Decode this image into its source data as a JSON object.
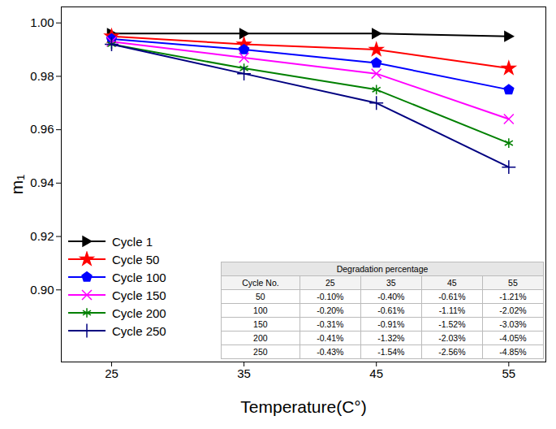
{
  "chart_data": {
    "type": "line",
    "x_label": "Temperature(C°)",
    "y_label": "m₁",
    "x": [
      25,
      35,
      45,
      55
    ],
    "xlim": [
      21.2,
      57.8
    ],
    "xticks": [
      25,
      35,
      45,
      55
    ],
    "ylim": [
      0.873,
      1.006
    ],
    "yticks": [
      {
        "value": 0.9,
        "label": "0.90"
      },
      0.92,
      0.94,
      0.96,
      0.98,
      {
        "value": 1.0,
        "label": "1.00"
      }
    ],
    "grid": false,
    "legend": "lower left",
    "series": [
      {
        "name": "Cycle 1",
        "color": "#000000",
        "marker": "triangle-right",
        "values": [
          0.996,
          0.996,
          0.996,
          0.995
        ]
      },
      {
        "name": "Cycle 50",
        "color": "#ff0000",
        "marker": "star",
        "values": [
          0.995,
          0.992,
          0.99,
          0.983
        ]
      },
      {
        "name": "Cycle 100",
        "color": "#0000ff",
        "marker": "pentagon",
        "values": [
          0.994,
          0.99,
          0.985,
          0.975
        ]
      },
      {
        "name": "Cycle 150",
        "color": "#ff00ff",
        "marker": "times",
        "values": [
          0.993,
          0.987,
          0.981,
          0.964
        ]
      },
      {
        "name": "Cycle 200",
        "color": "#008000",
        "marker": "asterisk",
        "values": [
          0.992,
          0.983,
          0.975,
          0.955
        ]
      },
      {
        "name": "Cycle 250",
        "color": "#000080",
        "marker": "plus",
        "values": [
          0.992,
          0.981,
          0.97,
          0.946
        ]
      }
    ],
    "table": {
      "title": "Degradation percentage",
      "columns": [
        "Cycle No.",
        "25",
        "35",
        "45",
        "55"
      ],
      "rows": [
        [
          "50",
          "-0.10%",
          "-0.40%",
          "-0.61%",
          "-1.21%"
        ],
        [
          "100",
          "-0.20%",
          "-0.61%",
          "-1.11%",
          "-2.02%"
        ],
        [
          "150",
          "-0.31%",
          "-0.91%",
          "-1.52%",
          "-3.03%"
        ],
        [
          "200",
          "-0.41%",
          "-1.32%",
          "-2.03%",
          "-4.05%"
        ],
        [
          "250",
          "-0.43%",
          "-1.54%",
          "-2.56%",
          "-4.85%"
        ]
      ]
    }
  }
}
